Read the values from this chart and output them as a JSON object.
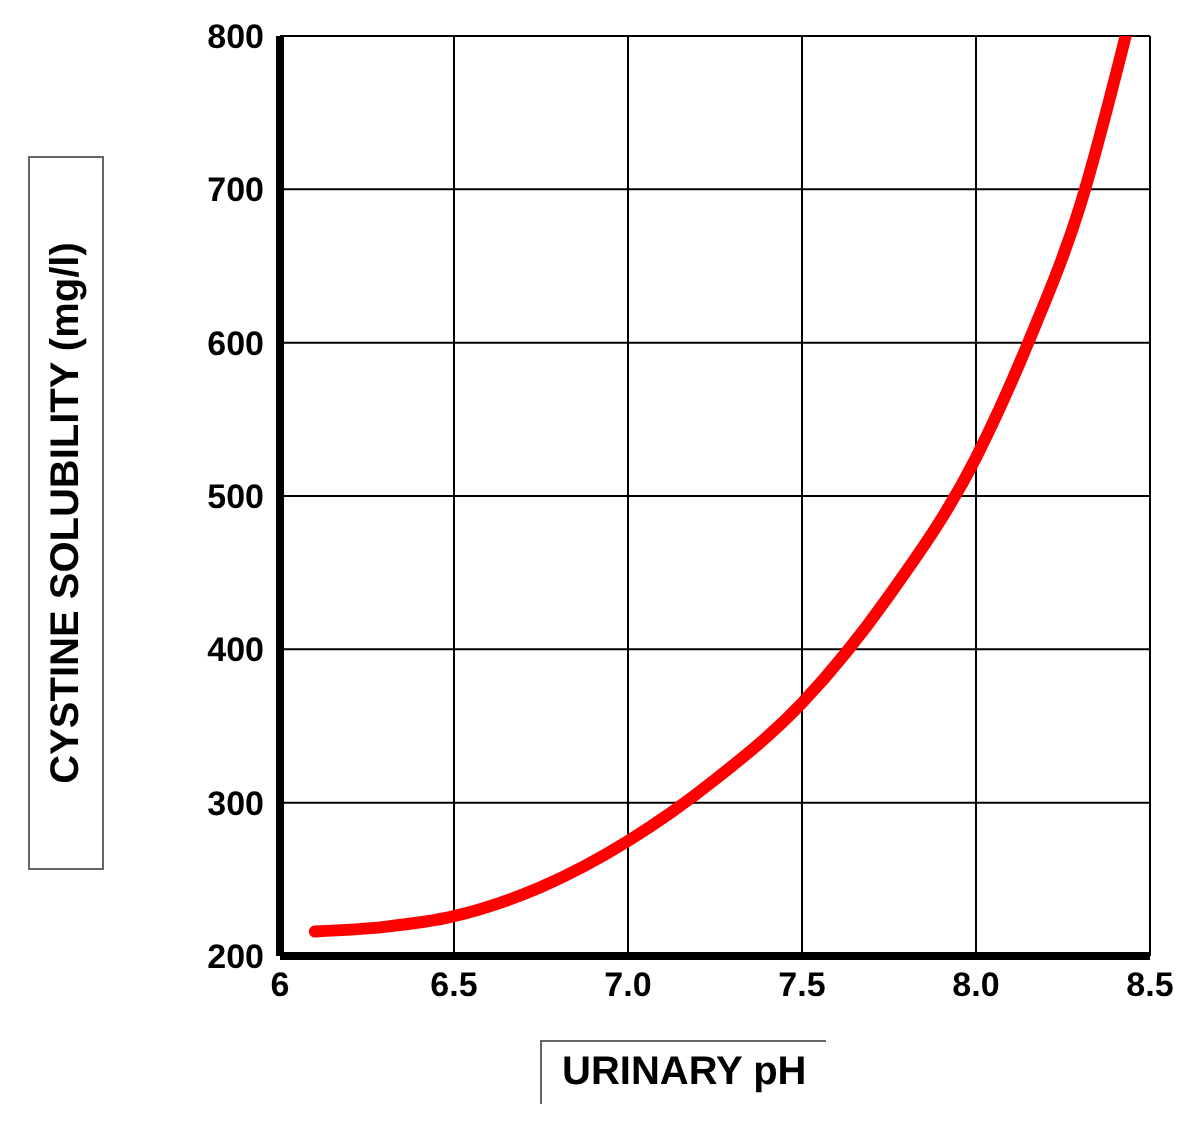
{
  "chart_data": {
    "type": "line",
    "xlabel": "URINARY pH",
    "ylabel": "CYSTINE SOLUBILITY (mg/l)",
    "xlim": [
      6,
      8.5
    ],
    "xticks": [
      6,
      6.5,
      {
        "value": 7,
        "label": "7.0"
      },
      7.5,
      {
        "value": 8,
        "label": "8.0"
      },
      8.5
    ],
    "ylim": [
      200,
      800
    ],
    "yticks": [
      200,
      300,
      400,
      500,
      600,
      700,
      800
    ],
    "grid": true,
    "marker": "none",
    "line_style": "solid",
    "x": [
      6.1,
      6.3,
      6.5,
      6.75,
      7.0,
      7.25,
      7.5,
      7.75,
      8.0,
      8.15,
      8.3,
      8.43
    ],
    "series": [
      {
        "color": "#ff0000",
        "values": [
          216,
          219,
          226,
          245,
          275,
          315,
          365,
          435,
          525,
          600,
          690,
          800
        ]
      }
    ]
  }
}
